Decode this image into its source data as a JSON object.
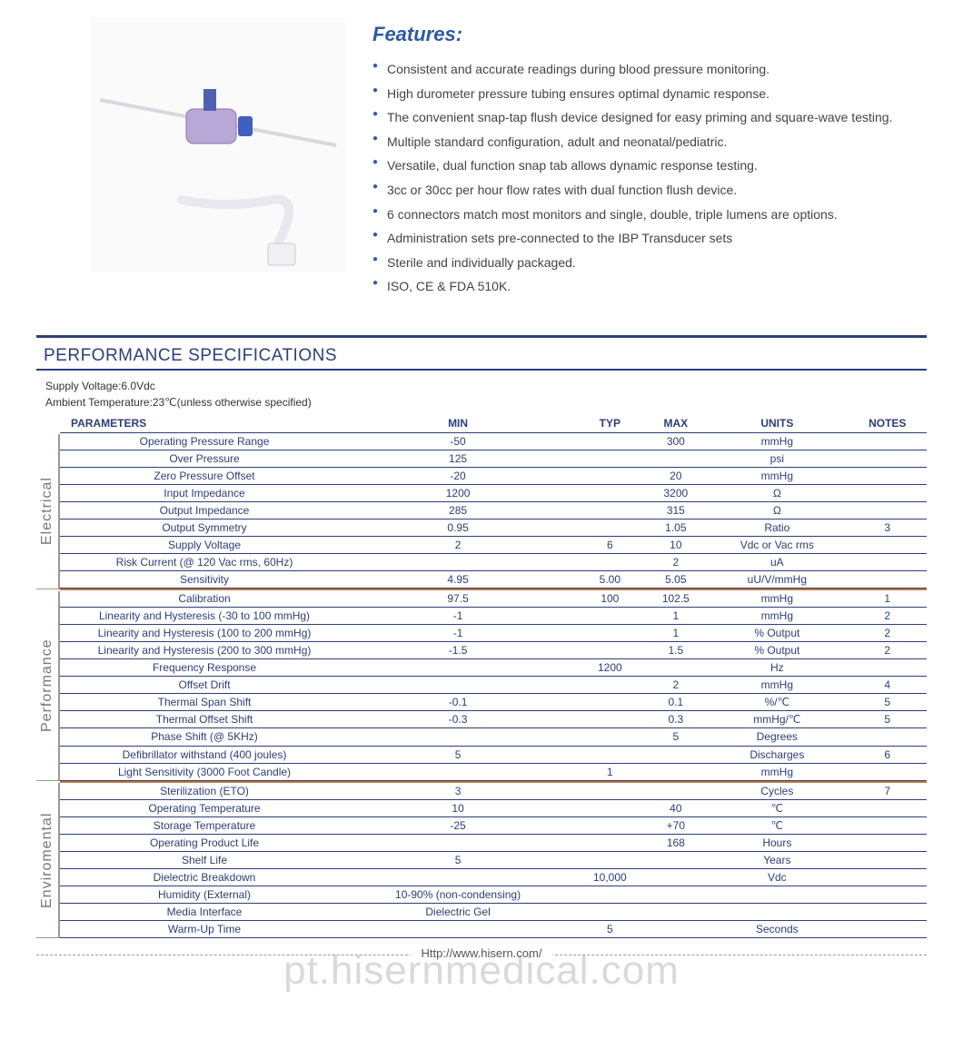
{
  "colors": {
    "accent": "#2d3e7a",
    "feature_bullet": "#2d5aa8",
    "section_orange": "#c27a3a",
    "text_gray": "#444444",
    "side_label_gray": "#777777",
    "background": "#ffffff"
  },
  "typography": {
    "body_font": "Arial",
    "features_title_size": 22,
    "feature_item_size": 14,
    "spec_title_size": 19,
    "table_font_size": 12,
    "side_label_size": 16
  },
  "features": {
    "title": "Features:",
    "items": [
      "Consistent and accurate readings during blood pressure monitoring.",
      "High durometer pressure tubing ensures optimal dynamic response.",
      "The convenient snap-tap flush device designed for easy priming and square-wave testing.",
      "Multiple standard configuration, adult and neonatal/pediatric.",
      "Versatile, dual function snap tab allows dynamic response testing.",
      "3cc or 30cc per hour flow rates with dual function flush device.",
      "6 connectors match most monitors and single, double, triple lumens are options.",
      "Administration sets pre-connected to the IBP Transducer sets",
      "Sterile and individually packaged.",
      "ISO, CE & FDA 510K."
    ]
  },
  "spec": {
    "title": "PERFORMANCE SPECIFICATIONS",
    "meta1": "Supply Voltage:6.0Vdc",
    "meta2": "Ambient Temperature:23℃(unless otherwise specified)",
    "columns": [
      "PARAMETERS",
      "MIN",
      "TYP",
      "MAX",
      "UNITS",
      "NOTES"
    ],
    "groups": [
      {
        "label": "Electrical",
        "rows": [
          {
            "p": "Operating Pressure Range",
            "min": "-50",
            "typ": "",
            "max": "300",
            "units": "mmHg",
            "notes": ""
          },
          {
            "p": "Over  Pressure",
            "min": "125",
            "typ": "",
            "max": "",
            "units": "psi",
            "notes": ""
          },
          {
            "p": "Zero Pressure Offset",
            "min": "-20",
            "typ": "",
            "max": "20",
            "units": "mmHg",
            "notes": ""
          },
          {
            "p": "Input Impedance",
            "min": "1200",
            "typ": "",
            "max": "3200",
            "units": "Ω",
            "notes": ""
          },
          {
            "p": "Output Impedance",
            "min": "285",
            "typ": "",
            "max": "315",
            "units": "Ω",
            "notes": ""
          },
          {
            "p": "Output Symmetry",
            "min": "0.95",
            "typ": "",
            "max": "1.05",
            "units": "Ratio",
            "notes": "3"
          },
          {
            "p": "Supply Voltage",
            "min": "2",
            "typ": "6",
            "max": "10",
            "units": "Vdc or Vac rms",
            "notes": ""
          },
          {
            "p": "Risk Current (@ 120 Vac rms, 60Hz)",
            "min": "",
            "typ": "",
            "max": "2",
            "units": "uA",
            "notes": ""
          },
          {
            "p": "Sensitivity",
            "min": "4.95",
            "typ": "5.00",
            "max": "5.05",
            "units": "uU/V/mmHg",
            "notes": ""
          }
        ]
      },
      {
        "label": "Performance",
        "rows": [
          {
            "p": "Calibration",
            "min": "97.5",
            "typ": "100",
            "max": "102.5",
            "units": "mmHg",
            "notes": "1"
          },
          {
            "p": "Linearity and Hysteresis (-30 to 100 mmHg)",
            "min": "-1",
            "typ": "",
            "max": "1",
            "units": "mmHg",
            "notes": "2"
          },
          {
            "p": "Linearity and Hysteresis (100 to 200 mmHg)",
            "min": "-1",
            "typ": "",
            "max": "1",
            "units": "% Output",
            "notes": "2"
          },
          {
            "p": "Linearity and Hysteresis (200 to 300 mmHg)",
            "min": "-1.5",
            "typ": "",
            "max": "1.5",
            "units": "% Output",
            "notes": "2"
          },
          {
            "p": "Frequency Response",
            "min": "",
            "typ": "1200",
            "max": "",
            "units": "Hz",
            "notes": ""
          },
          {
            "p": "Offset Drift",
            "min": "",
            "typ": "",
            "max": "2",
            "units": "mmHg",
            "notes": "4"
          },
          {
            "p": "Thermal Span Shift",
            "min": "-0.1",
            "typ": "",
            "max": "0.1",
            "units": "%/℃",
            "notes": "5"
          },
          {
            "p": "Thermal Offset Shift",
            "min": "-0.3",
            "typ": "",
            "max": "0.3",
            "units": "mmHg/℃",
            "notes": "5"
          },
          {
            "p": "Phase Shift (@ 5KHz)",
            "min": "",
            "typ": "",
            "max": "5",
            "units": "Degrees",
            "notes": ""
          },
          {
            "p": "Defibrillator withstand (400 joules)",
            "min": "5",
            "typ": "",
            "max": "",
            "units": "Discharges",
            "notes": "6"
          },
          {
            "p": "Light Sensitivity (3000 Foot Candle)",
            "min": "",
            "typ": "1",
            "max": "",
            "units": "mmHg",
            "notes": ""
          }
        ]
      },
      {
        "label": "Enviromental",
        "rows": [
          {
            "p": "Sterilization (ETO)",
            "min": "3",
            "typ": "",
            "max": "",
            "units": "Cycles",
            "notes": "7"
          },
          {
            "p": "Operating Temperature",
            "min": "10",
            "typ": "",
            "max": "40",
            "units": "℃",
            "notes": ""
          },
          {
            "p": "Storage Temperature",
            "min": "-25",
            "typ": "",
            "max": "+70",
            "units": "℃",
            "notes": ""
          },
          {
            "p": "Operating Product Life",
            "min": "",
            "typ": "",
            "max": "168",
            "units": "Hours",
            "notes": ""
          },
          {
            "p": "Shelf Life",
            "min": "5",
            "typ": "",
            "max": "",
            "units": "Years",
            "notes": ""
          },
          {
            "p": "Dielectric Breakdown",
            "min": "",
            "typ": "10,000",
            "max": "",
            "units": "Vdc",
            "notes": ""
          },
          {
            "p": "Humidity (External)",
            "min": "10-90% (non-condensing)",
            "typ": "",
            "max": "",
            "units": "",
            "notes": ""
          },
          {
            "p": "Media Interface",
            "min": "Dielectric Gel",
            "typ": "",
            "max": "",
            "units": "",
            "notes": ""
          },
          {
            "p": "Warm-Up Time",
            "min": "",
            "typ": "5",
            "max": "",
            "units": "Seconds",
            "notes": ""
          }
        ]
      }
    ]
  },
  "footer": {
    "url": "Http://www.hisern.com/"
  },
  "watermark": "pt.hisernmedical.com"
}
